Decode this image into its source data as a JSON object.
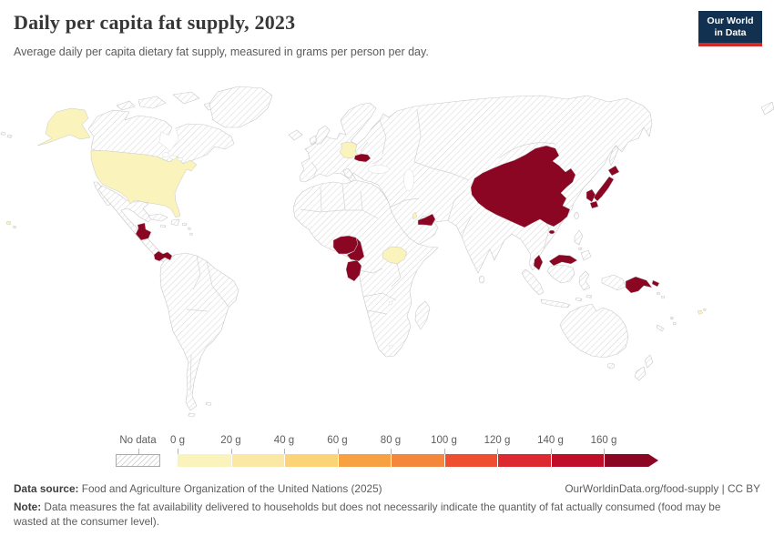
{
  "header": {
    "title": "Daily per capita fat supply, 2023",
    "subtitle": "Average daily per capita dietary fat supply, measured in grams per person per day.",
    "logo": {
      "line1": "Our World",
      "line2": "in Data",
      "bg_color": "#12304f",
      "accent_color": "#d12b27"
    }
  },
  "legend": {
    "no_data_label": "No data",
    "labels": [
      "0 g",
      "20 g",
      "40 g",
      "60 g",
      "80 g",
      "100 g",
      "120 g",
      "140 g",
      "160 g"
    ],
    "segment_colors": [
      "#fbf3bc",
      "#fae8a4",
      "#fbd477",
      "#f8a143",
      "#f5873d",
      "#f04e31",
      "#dd2a31",
      "#c00d28",
      "#8a0622"
    ]
  },
  "map": {
    "palette": {
      "low": "#fbf3bc",
      "high": "#8a0622"
    },
    "no_data_style": "diagonal-hatch",
    "countries_low_band": [
      "United States",
      "Germany",
      "South Sudan",
      "Qatar",
      "Fiji"
    ],
    "countries_high_band": [
      "China",
      "Japan",
      "South Korea",
      "Malaysia",
      "Papua New Guinea",
      "United Arab Emirates",
      "Austria",
      "Guatemala",
      "Panama",
      "Nigeria",
      "Cameroon",
      "Gabon"
    ]
  },
  "footer": {
    "source_label": "Data source:",
    "source_text": " Food and Agriculture Organization of the United Nations (2025)",
    "credit": "OurWorldinData.org/food-supply | CC BY",
    "note_label": "Note:",
    "note_text": " Data measures the fat availability delivered to households but does not necessarily indicate the quantity of fat actually consumed (food may be wasted at the consumer level)."
  },
  "chart_data": {
    "type": "choropleth",
    "title": "Daily per capita fat supply, 2023",
    "subtitle": "Average daily per capita dietary fat supply, measured in grams per person per day.",
    "year": 2023,
    "unit": "grams per person per day",
    "legend_bins": [
      {
        "range": "0–20 g",
        "color": "#fbf3bc"
      },
      {
        "range": "20–40 g",
        "color": "#fae8a4"
      },
      {
        "range": "40–60 g",
        "color": "#fbd477"
      },
      {
        "range": "60–80 g",
        "color": "#f8a143"
      },
      {
        "range": "80–100 g",
        "color": "#f5873d"
      },
      {
        "range": "100–120 g",
        "color": "#f04e31"
      },
      {
        "range": "120–140 g",
        "color": "#dd2a31"
      },
      {
        "range": "140–160 g",
        "color": "#c00d28"
      },
      {
        "range": "160+ g",
        "color": "#8a0622"
      }
    ],
    "no_data_label": "No data",
    "series": [
      {
        "entity": "United States",
        "band": "0–20 g"
      },
      {
        "entity": "Germany",
        "band": "0–20 g"
      },
      {
        "entity": "South Sudan",
        "band": "0–20 g"
      },
      {
        "entity": "Qatar",
        "band": "0–20 g"
      },
      {
        "entity": "Fiji",
        "band": "0–20 g"
      },
      {
        "entity": "China",
        "band": "160+ g"
      },
      {
        "entity": "Japan",
        "band": "160+ g"
      },
      {
        "entity": "South Korea",
        "band": "160+ g"
      },
      {
        "entity": "Malaysia",
        "band": "160+ g"
      },
      {
        "entity": "Papua New Guinea",
        "band": "160+ g"
      },
      {
        "entity": "United Arab Emirates",
        "band": "160+ g"
      },
      {
        "entity": "Austria",
        "band": "160+ g"
      },
      {
        "entity": "Guatemala",
        "band": "160+ g"
      },
      {
        "entity": "Panama",
        "band": "160+ g"
      },
      {
        "entity": "Nigeria",
        "band": "160+ g"
      },
      {
        "entity": "Cameroon",
        "band": "160+ g"
      },
      {
        "entity": "Gabon",
        "band": "160+ g"
      },
      {
        "entity": "All other countries",
        "band": "No data"
      }
    ]
  }
}
